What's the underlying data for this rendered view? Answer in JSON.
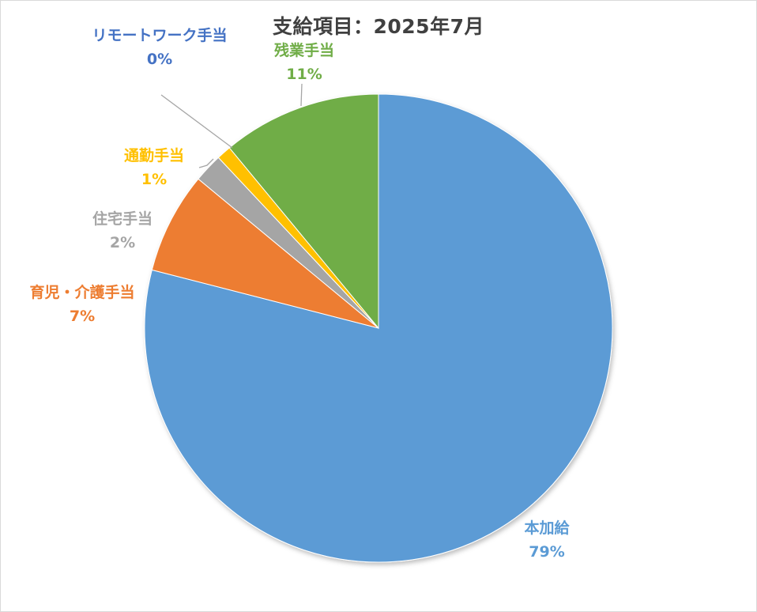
{
  "chart_data": {
    "type": "pie",
    "title": "支給項目：2025年7月",
    "categories": [
      "本加給",
      "育児・介護手当",
      "住宅手当",
      "通勤手当",
      "リモートワーク手当",
      "残業手当"
    ],
    "values": [
      79,
      7,
      2,
      1,
      0,
      11
    ],
    "percent_labels": [
      "79%",
      "7%",
      "2%",
      "1%",
      "0%",
      "11%"
    ],
    "colors": [
      "#5b9bd5",
      "#ed7d31",
      "#a5a5a5",
      "#ffc000",
      "#4472c4",
      "#70ad47"
    ],
    "start_angle": "top, clockwise",
    "legend": "none"
  }
}
